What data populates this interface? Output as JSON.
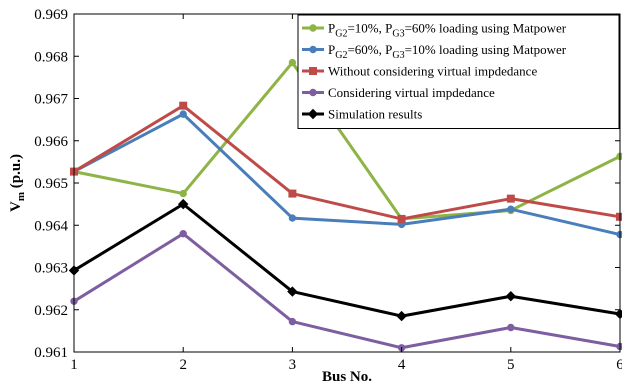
{
  "chart_data": {
    "type": "line",
    "xlabel": "Bus No.",
    "ylabel_main": "V",
    "ylabel_sub": "m",
    "ylabel_unit": " (p.u.)",
    "x": [
      1,
      2,
      3,
      4,
      5,
      6
    ],
    "xlim": [
      1,
      6
    ],
    "ylim": [
      0.961,
      0.969
    ],
    "xticks": [
      "1",
      "2",
      "3",
      "4",
      "5",
      "6"
    ],
    "yticks": [
      "0.961",
      "0.962",
      "0.963",
      "0.964",
      "0.965",
      "0.966",
      "0.967",
      "0.968",
      "0.969"
    ],
    "grid": false,
    "legend_position": "top-right",
    "series": [
      {
        "legend_parts": [
          [
            "P",
            "normal"
          ],
          [
            "G2",
            "sub"
          ],
          [
            "=10%, P",
            "normal"
          ],
          [
            "G3",
            "sub"
          ],
          [
            "=60% loading using Matpower",
            "normal"
          ]
        ],
        "color": "#8DB444",
        "marker": "circle",
        "values": [
          0.96527,
          0.96475,
          0.96785,
          0.96415,
          0.96435,
          0.96563
        ]
      },
      {
        "legend_parts": [
          [
            "P",
            "normal"
          ],
          [
            "G2",
            "sub"
          ],
          [
            "=60%, P",
            "normal"
          ],
          [
            "G3",
            "sub"
          ],
          [
            "=10% loading using Matpower",
            "normal"
          ]
        ],
        "color": "#4A7EBB",
        "marker": "circle",
        "values": [
          0.96527,
          0.96663,
          0.96417,
          0.96402,
          0.96438,
          0.96378
        ]
      },
      {
        "legend_parts": [
          [
            "Without considering virtual impdedance",
            "normal"
          ]
        ],
        "color": "#BE4B48",
        "marker": "square",
        "values": [
          0.96527,
          0.96683,
          0.96475,
          0.96415,
          0.96463,
          0.9642
        ]
      },
      {
        "legend_parts": [
          [
            "Considering virtual  impdedance",
            "normal"
          ]
        ],
        "color": "#7D5EA0",
        "marker": "circle",
        "values": [
          0.9622,
          0.9638,
          0.96172,
          0.9611,
          0.96158,
          0.96113
        ]
      },
      {
        "legend_parts": [
          [
            "Simulation results",
            "normal"
          ]
        ],
        "color": "#000000",
        "marker": "diamond",
        "values": [
          0.96293,
          0.9645,
          0.96243,
          0.96185,
          0.96232,
          0.9619
        ]
      }
    ]
  }
}
